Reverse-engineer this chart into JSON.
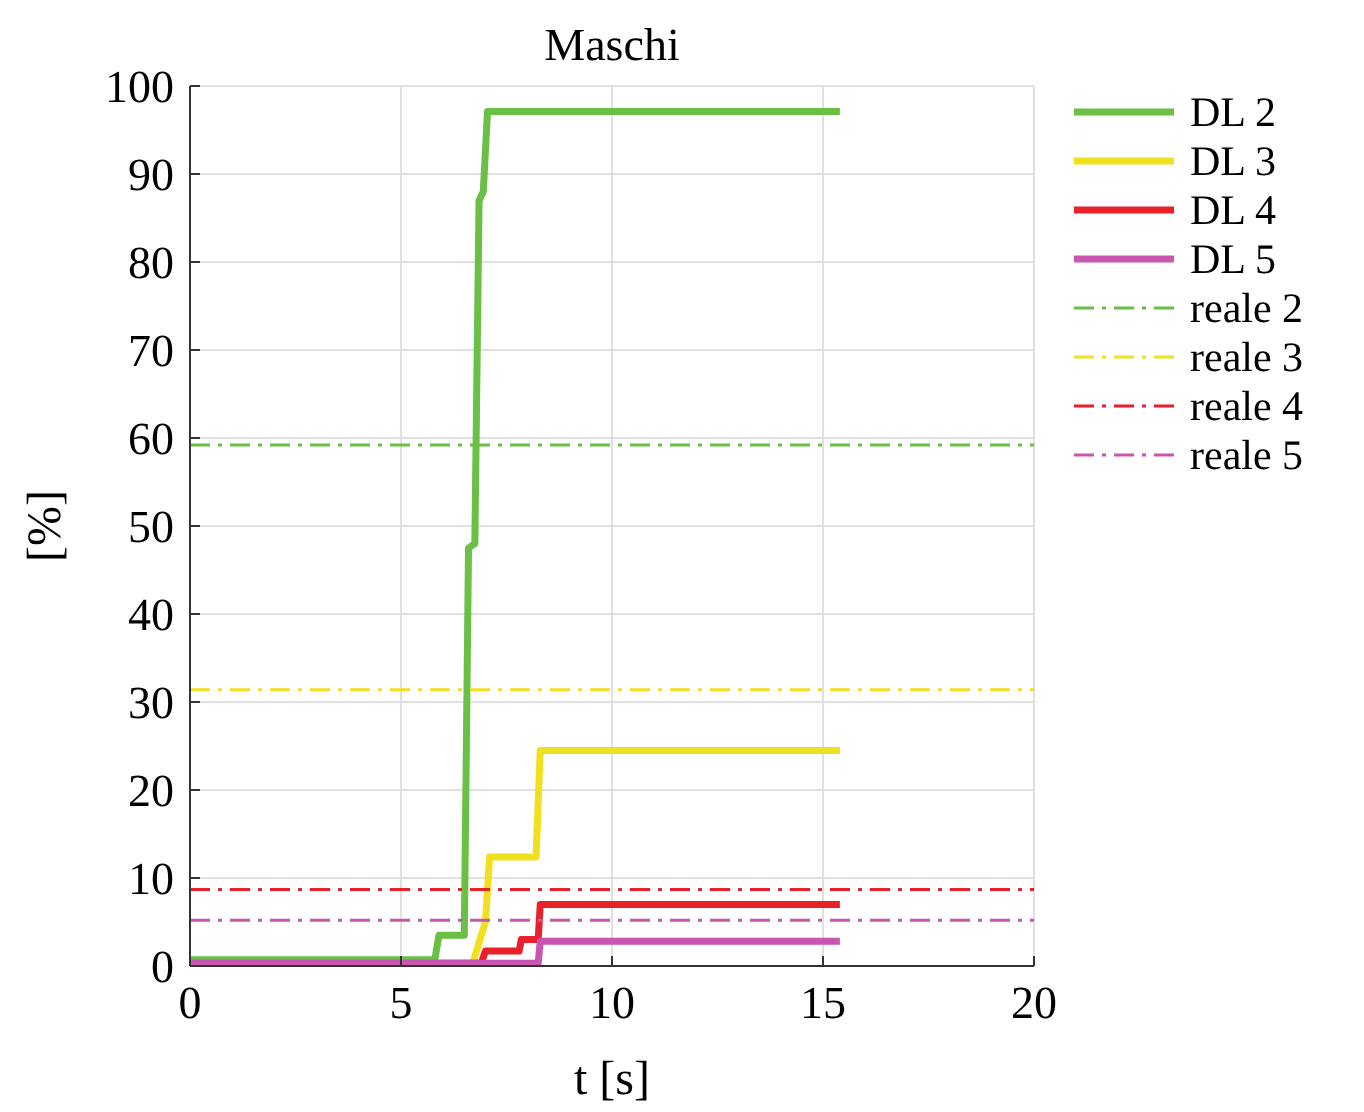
{
  "chart_data": {
    "type": "line",
    "title": "Maschi",
    "xlabel": "t [s]",
    "ylabel": "[%]",
    "xlim": [
      0,
      20
    ],
    "xticks": [
      0,
      5,
      10,
      15,
      20
    ],
    "ylim": [
      0,
      100
    ],
    "yticks": [
      0,
      10,
      20,
      30,
      40,
      50,
      60,
      70,
      80,
      90,
      100
    ],
    "grid": true,
    "legend": "top right",
    "line_style": "solid",
    "marker": "none",
    "series": [
      {
        "name": "DL 2",
        "color": "#6abf45",
        "x": [
          0,
          5.8,
          5.9,
          6.5,
          6.6,
          6.75,
          6.85,
          6.95,
          7.05,
          15.4
        ],
        "values": [
          0.7,
          0.7,
          3.5,
          3.5,
          47.5,
          48,
          87,
          88,
          97.1,
          97.1
        ]
      },
      {
        "name": "DL 3",
        "color": "#f0e020",
        "x": [
          0,
          6.7,
          7.0,
          7.1,
          8.2,
          8.3,
          15.4
        ],
        "values": [
          0.3,
          0.3,
          5,
          12.4,
          12.4,
          24.5,
          24.5
        ]
      },
      {
        "name": "DL 4",
        "color": "#e8202a",
        "x": [
          0,
          6.9,
          7.0,
          7.8,
          7.85,
          8.25,
          8.3,
          15.4
        ],
        "values": [
          0.3,
          0.3,
          1.7,
          1.7,
          3.0,
          3.0,
          7.0,
          7.0
        ]
      },
      {
        "name": "DL 5",
        "color": "#c855b0",
        "x": [
          0,
          8.25,
          8.3,
          15.4
        ],
        "values": [
          0.3,
          0.3,
          2.8,
          2.8
        ]
      },
      {
        "name": "reale 2",
        "color": "#6abf45",
        "line_style": "dashdot",
        "x": [
          0,
          20
        ],
        "values": [
          59.2,
          59.2
        ]
      },
      {
        "name": "reale 3",
        "color": "#f0e020",
        "line_style": "dashdot",
        "x": [
          0,
          20
        ],
        "values": [
          31.4,
          31.4
        ]
      },
      {
        "name": "reale 4",
        "color": "#e8202a",
        "line_style": "dashdot",
        "x": [
          0,
          20
        ],
        "values": [
          8.7,
          8.7
        ]
      },
      {
        "name": "reale 5",
        "color": "#c855b0",
        "line_style": "dashdot",
        "x": [
          0,
          20
        ],
        "values": [
          5.2,
          5.2
        ]
      }
    ]
  }
}
